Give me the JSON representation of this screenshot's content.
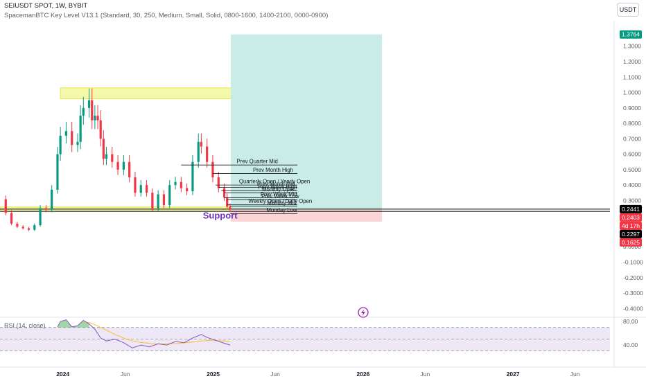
{
  "header": {
    "symbol_line": "SEIUSDT SPOT, 1W, BYBIT",
    "indicator_line": "SpacemanBTC Key Level V13.1 (Standard, 30, 250, Medium, Small, Solid, 0800-1600, 1400-2100, 0000-0900)"
  },
  "currency_button": "USDT",
  "lightning_icon": "lightning-icon",
  "chart_data": {
    "type": "candlestick",
    "symbol": "SEIUSDT",
    "interval": "1W",
    "exchange": "BYBIT",
    "y_ticks": [
      "1.3000",
      "1.2000",
      "1.1000",
      "1.0000",
      "0.9000",
      "0.8000",
      "0.7000",
      "0.6000",
      "0.5000",
      "0.4000",
      "0.3000",
      "0.2000",
      "0.1000",
      "0.0000",
      "-0.1000",
      "-0.2000",
      "-0.3000",
      "-0.4000"
    ],
    "y_tick_values": [
      1.3,
      1.2,
      1.1,
      1.0,
      0.9,
      0.8,
      0.7,
      0.6,
      0.5,
      0.4,
      0.3,
      0.2,
      0.1,
      0.0,
      -0.1,
      -0.2,
      -0.3,
      -0.4
    ],
    "ylim": [
      -0.43,
      1.42
    ],
    "x_ticks": [
      "2024",
      "Jun",
      "2025",
      "Jun",
      "2026",
      "Jun",
      "2027",
      "Jun"
    ],
    "x_tick_bold": [
      true,
      false,
      true,
      false,
      true,
      false,
      true,
      false
    ],
    "x_tick_dates": [
      "2024-01-01",
      "2024-06-01",
      "2025-01-01",
      "2025-06-01",
      "2026-01-01",
      "2026-06-01",
      "2027-01-01",
      "2027-06-01"
    ],
    "x_range": [
      "2023-08-01",
      "2027-08-25"
    ],
    "price_tags": [
      {
        "label": "1.3764",
        "value": 1.3764,
        "bg": "#089981",
        "fg": "#ffffff"
      },
      {
        "label": "0.2441",
        "value": 0.2441,
        "bg": "#000000",
        "fg": "#ffffff"
      },
      {
        "label": "0.2403",
        "value": 0.2403,
        "bg": "#f23645",
        "fg": "#ffffff"
      },
      {
        "label": "4d 17h",
        "value": 0.2403,
        "bg": "#f23645",
        "fg": "#ffffff"
      },
      {
        "label": "0.2297",
        "value": 0.2297,
        "bg": "#000000",
        "fg": "#ffffff"
      },
      {
        "label": "0.1625",
        "value": 0.1625,
        "bg": "#f23645",
        "fg": "#ffffff"
      }
    ],
    "weekly_closes": [
      {
        "date": "2023-08-15",
        "close": 0.22
      },
      {
        "date": "2023-08-29",
        "close": 0.15
      },
      {
        "date": "2023-09-12",
        "close": 0.13
      },
      {
        "date": "2023-09-26",
        "close": 0.12
      },
      {
        "date": "2023-10-10",
        "close": 0.11
      },
      {
        "date": "2023-10-24",
        "close": 0.14
      },
      {
        "date": "2023-11-07",
        "close": 0.25
      },
      {
        "date": "2023-11-21",
        "close": 0.24
      },
      {
        "date": "2023-12-05",
        "close": 0.37
      },
      {
        "date": "2023-12-19",
        "close": 0.6
      },
      {
        "date": "2023-12-26",
        "close": 0.72
      },
      {
        "date": "2024-01-09",
        "close": 0.75
      },
      {
        "date": "2024-01-23",
        "close": 0.66
      },
      {
        "date": "2024-02-06",
        "close": 0.68
      },
      {
        "date": "2024-02-13",
        "close": 0.85
      },
      {
        "date": "2024-02-20",
        "close": 0.9
      },
      {
        "date": "2024-03-05",
        "close": 0.95
      },
      {
        "date": "2024-03-12",
        "close": 0.82
      },
      {
        "date": "2024-03-19",
        "close": 0.85
      },
      {
        "date": "2024-03-26",
        "close": 0.82
      },
      {
        "date": "2024-04-02",
        "close": 0.7
      },
      {
        "date": "2024-04-09",
        "close": 0.57
      },
      {
        "date": "2024-04-16",
        "close": 0.6
      },
      {
        "date": "2024-04-30",
        "close": 0.55
      },
      {
        "date": "2024-05-14",
        "close": 0.5
      },
      {
        "date": "2024-05-28",
        "close": 0.55
      },
      {
        "date": "2024-06-11",
        "close": 0.45
      },
      {
        "date": "2024-06-25",
        "close": 0.35
      },
      {
        "date": "2024-07-09",
        "close": 0.4
      },
      {
        "date": "2024-07-23",
        "close": 0.35
      },
      {
        "date": "2024-08-06",
        "close": 0.25
      },
      {
        "date": "2024-08-20",
        "close": 0.34
      },
      {
        "date": "2024-09-03",
        "close": 0.27
      },
      {
        "date": "2024-09-17",
        "close": 0.4
      },
      {
        "date": "2024-10-01",
        "close": 0.42
      },
      {
        "date": "2024-10-15",
        "close": 0.38
      },
      {
        "date": "2024-10-29",
        "close": 0.36
      },
      {
        "date": "2024-11-12",
        "close": 0.55
      },
      {
        "date": "2024-11-26",
        "close": 0.68
      },
      {
        "date": "2024-12-03",
        "close": 0.65
      },
      {
        "date": "2024-12-17",
        "close": 0.55
      },
      {
        "date": "2024-12-31",
        "close": 0.45
      },
      {
        "date": "2025-01-14",
        "close": 0.38
      },
      {
        "date": "2025-01-28",
        "close": 0.32
      },
      {
        "date": "2025-02-04",
        "close": 0.26
      },
      {
        "date": "2025-02-11",
        "close": 0.24
      }
    ],
    "zones": [
      {
        "kind": "highlight",
        "date_from": "2023-12-26",
        "date_to": "2025-11-10",
        "y_from": 1.03,
        "y_to": 0.96,
        "fill": "#f3f89c",
        "stroke": "#e3e32a"
      },
      {
        "kind": "highlight",
        "date_from": "2023-08-01",
        "date_to": "2026-02-09",
        "y_from": 0.258,
        "y_to": 0.23,
        "fill": "#f3f89c",
        "stroke": "#e3e32a"
      },
      {
        "kind": "target",
        "date_from": "2025-02-13",
        "date_to": "2026-02-16",
        "y_from": 1.3764,
        "y_to": 0.2403,
        "fill": "#c9ece6"
      },
      {
        "kind": "stop",
        "date_from": "2025-02-13",
        "date_to": "2026-02-16",
        "y_from": 0.2403,
        "y_to": 0.1625,
        "fill": "#fbd4d6"
      }
    ],
    "horizontal_lines": [
      {
        "y": 0.2441,
        "color": "#000000"
      },
      {
        "y": 0.2297,
        "color": "#000000"
      }
    ],
    "key_levels": [
      {
        "label": "Prev Quarter Mid",
        "y": 0.53,
        "date_from": "2024-10-15"
      },
      {
        "label": "Prev Month High",
        "y": 0.475,
        "date_from": "2024-12-31"
      },
      {
        "label": "Quarterly Open / Yearly Open",
        "y": 0.4,
        "date_from": "2025-01-07"
      },
      {
        "label": "Prev Month Mid",
        "y": 0.385,
        "date_from": "2025-01-14"
      },
      {
        "label": "Prev Week High",
        "y": 0.365,
        "date_from": "2025-01-21"
      },
      {
        "label": "Monthly Open",
        "y": 0.35,
        "date_from": "2025-01-28"
      },
      {
        "label": "Prev Week Mid",
        "y": 0.318,
        "date_from": "2025-01-28"
      },
      {
        "label": "Prev Week Low",
        "y": 0.305,
        "date_from": "2025-02-04"
      },
      {
        "label": "Weekly Open / Daily Open",
        "y": 0.272,
        "date_from": "2025-02-04"
      },
      {
        "label": "Monday Mid",
        "y": 0.262,
        "date_from": "2025-02-11"
      },
      {
        "label": "Monday Low",
        "y": 0.215,
        "date_from": "2025-02-11"
      }
    ],
    "annotation": {
      "text": "Support",
      "color": "#6a35b5",
      "date": "2025-01-18",
      "y": 0.2
    }
  },
  "rsi": {
    "title": "RSI (14, close)",
    "ticks": [
      "80.00",
      "40.00"
    ],
    "tick_values": [
      80,
      40
    ],
    "band": [
      70,
      30
    ],
    "ylim": [
      20,
      85
    ],
    "rsi_series": [
      {
        "date": "2023-12-19",
        "value": 71
      },
      {
        "date": "2023-12-26",
        "value": 80
      },
      {
        "date": "2024-01-09",
        "value": 83
      },
      {
        "date": "2024-01-23",
        "value": 71
      },
      {
        "date": "2024-02-06",
        "value": 73
      },
      {
        "date": "2024-02-20",
        "value": 82
      },
      {
        "date": "2024-03-05",
        "value": 76
      },
      {
        "date": "2024-03-19",
        "value": 67
      },
      {
        "date": "2024-04-02",
        "value": 52
      },
      {
        "date": "2024-04-16",
        "value": 47
      },
      {
        "date": "2024-05-07",
        "value": 50
      },
      {
        "date": "2024-05-28",
        "value": 44
      },
      {
        "date": "2024-06-18",
        "value": 35
      },
      {
        "date": "2024-07-09",
        "value": 40
      },
      {
        "date": "2024-07-30",
        "value": 37
      },
      {
        "date": "2024-08-20",
        "value": 42
      },
      {
        "date": "2024-09-10",
        "value": 40
      },
      {
        "date": "2024-10-01",
        "value": 46
      },
      {
        "date": "2024-10-22",
        "value": 44
      },
      {
        "date": "2024-11-12",
        "value": 52
      },
      {
        "date": "2024-12-03",
        "value": 58
      },
      {
        "date": "2024-12-17",
        "value": 53
      },
      {
        "date": "2025-01-07",
        "value": 48
      },
      {
        "date": "2025-01-28",
        "value": 43
      },
      {
        "date": "2025-02-11",
        "value": 40
      }
    ],
    "ma_series": [
      {
        "date": "2024-02-20",
        "value": 80
      },
      {
        "date": "2024-03-12",
        "value": 77
      },
      {
        "date": "2024-04-09",
        "value": 68
      },
      {
        "date": "2024-05-07",
        "value": 58
      },
      {
        "date": "2024-06-04",
        "value": 50
      },
      {
        "date": "2024-07-02",
        "value": 45
      },
      {
        "date": "2024-08-06",
        "value": 42
      },
      {
        "date": "2024-09-10",
        "value": 42
      },
      {
        "date": "2024-10-15",
        "value": 43
      },
      {
        "date": "2024-11-19",
        "value": 46
      },
      {
        "date": "2024-12-24",
        "value": 48
      },
      {
        "date": "2025-01-28",
        "value": 47
      },
      {
        "date": "2025-02-11",
        "value": 46
      }
    ],
    "series_colors": {
      "rsi": "#7e57c2",
      "ma": "#fbc02d"
    },
    "overbought_fill": "#66bb6a",
    "band_fill": "#ede7f6"
  }
}
